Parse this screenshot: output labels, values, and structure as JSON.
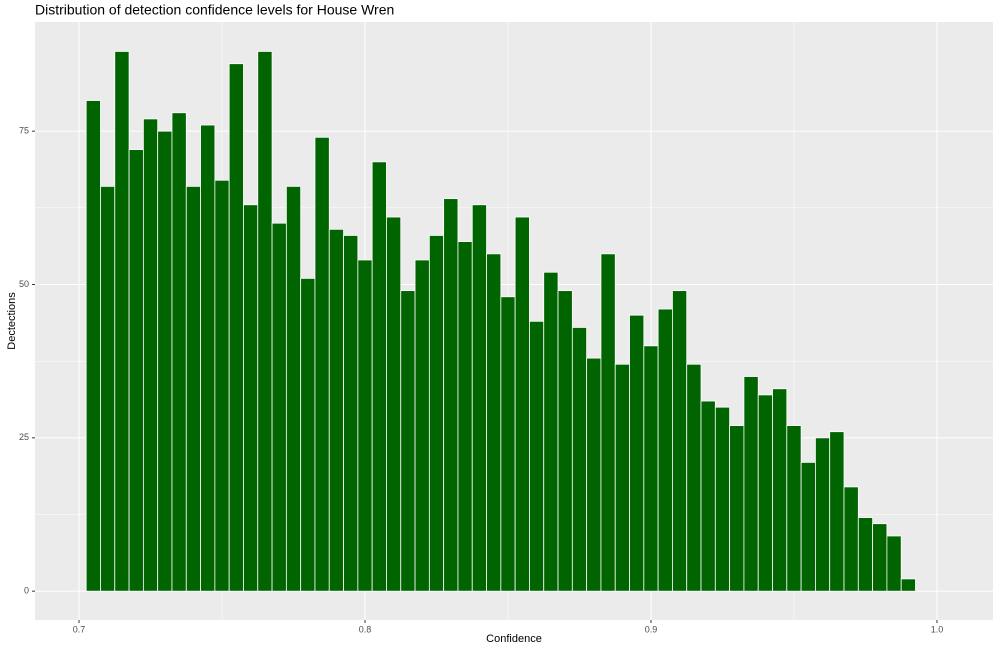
{
  "chart_data": {
    "type": "histogram",
    "title": "Distribution of detection confidence levels for House Wren",
    "x_label": "Confidence",
    "y_label": "Dectections",
    "bins": [
      0.7025,
      0.7075,
      0.7125,
      0.7175,
      0.7225,
      0.7275,
      0.7325,
      0.7375,
      0.7425,
      0.7475,
      0.7525,
      0.7575,
      0.7625,
      0.7675,
      0.7725,
      0.7775,
      0.7825,
      0.7875,
      0.7925,
      0.7975,
      0.8025,
      0.8075,
      0.8125,
      0.8175,
      0.8225,
      0.8275,
      0.8325,
      0.8375,
      0.8425,
      0.8475,
      0.8525,
      0.8575,
      0.8625,
      0.8675,
      0.8725,
      0.8775,
      0.8825,
      0.8875,
      0.8925,
      0.8975,
      0.9025,
      0.9075,
      0.9125,
      0.9175,
      0.9225,
      0.9275,
      0.9325,
      0.9375,
      0.9425,
      0.9475,
      0.9525,
      0.9575,
      0.9625,
      0.9675,
      0.9725,
      0.9775,
      0.9825,
      0.9875,
      0.9925
    ],
    "values": [
      80,
      66,
      88,
      72,
      77,
      75,
      78,
      66,
      76,
      67,
      86,
      63,
      88,
      60,
      66,
      51,
      74,
      59,
      58,
      54,
      70,
      61,
      49,
      54,
      58,
      64,
      57,
      63,
      55,
      48,
      61,
      44,
      52,
      49,
      43,
      38,
      55,
      37,
      45,
      40,
      46,
      49,
      37,
      31,
      30,
      27,
      35,
      32,
      33,
      27,
      21,
      25,
      26,
      17,
      12,
      11,
      9,
      2
    ],
    "color": "#006400",
    "xlim": [
      0.6846,
      1.0196
    ],
    "ylim": [
      -4.7,
      92.8
    ],
    "xticks": [
      0.7,
      0.8,
      0.9,
      {
        "value": 1,
        "label": "1.0"
      }
    ],
    "yticks": [
      0,
      25,
      50,
      75
    ],
    "grid": true
  }
}
